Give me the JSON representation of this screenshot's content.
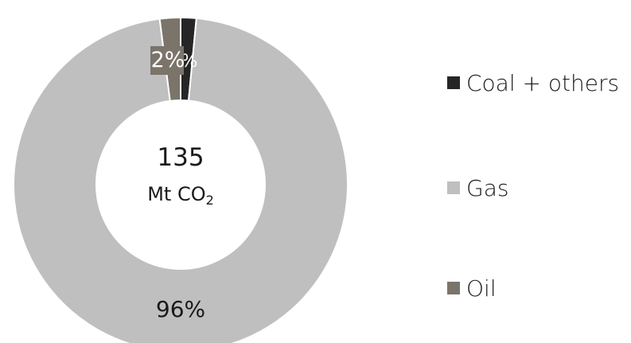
{
  "chart_data": {
    "type": "pie",
    "categories": [
      "Coal + others",
      "Oil",
      "Gas"
    ],
    "values": [
      1.5,
      2,
      96
    ],
    "colors": {
      "Coal + others": "#262626",
      "Gas": "#bfbfbf",
      "Oil": "#7b746b"
    },
    "data_labels": {
      "Coal + others": "%",
      "Oil": "2%",
      "Gas": "96%"
    },
    "center": {
      "value": "135",
      "unit_main": "Mt CO",
      "unit_sub": "2"
    },
    "legend": {
      "position": "right",
      "items": [
        {
          "label": "Coal + others",
          "color": "#262626"
        },
        {
          "label": "Gas",
          "color": "#bfbfbf"
        },
        {
          "label": "Oil",
          "color": "#7b746b"
        }
      ]
    }
  }
}
